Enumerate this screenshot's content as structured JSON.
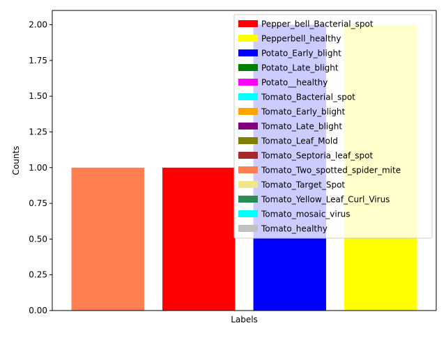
{
  "chart_data": {
    "type": "bar",
    "title": "",
    "xlabel": "Labels",
    "ylabel": "Counts",
    "ylim": [
      0,
      2.1
    ],
    "yticks": [
      "0.00",
      "0.25",
      "0.50",
      "0.75",
      "1.00",
      "1.25",
      "1.50",
      "1.75",
      "2.00"
    ],
    "ytick_values": [
      0,
      0.25,
      0.5,
      0.75,
      1.0,
      1.25,
      1.5,
      1.75,
      2.0
    ],
    "bars": [
      {
        "category": "Tomato_Two_spotted_spider_mite",
        "value": 1,
        "color": "#ff7f50"
      },
      {
        "category": "Pepper_bell_Bacterial_spot",
        "value": 1,
        "color": "#ff0000"
      },
      {
        "category": "Potato_Early_blight",
        "value": 2,
        "color": "#0000ff"
      },
      {
        "category": "Pepperbell_healthy",
        "value": 2,
        "color": "#ffff00"
      }
    ],
    "legend_position": "upper right",
    "legend": [
      {
        "label": "Pepper_bell_Bacterial_spot",
        "color": "#ff0000"
      },
      {
        "label": "Pepperbell_healthy",
        "color": "#ffff00"
      },
      {
        "label": "Potato_Early_blight",
        "color": "#0000ff"
      },
      {
        "label": "Potato_Late_blight",
        "color": "#008000"
      },
      {
        "label": "Potato__healthy",
        "color": "#ff00ff"
      },
      {
        "label": "Tomato_Bacterial_spot",
        "color": "#00ffff"
      },
      {
        "label": "Tomato_Early_blight",
        "color": "#ffa500"
      },
      {
        "label": "Tomato_Late_blight",
        "color": "#800080"
      },
      {
        "label": "Tomato_Leaf_Mold",
        "color": "#808000"
      },
      {
        "label": "Tomato_Septoria_leaf_spot",
        "color": "#a52a2a"
      },
      {
        "label": "Tomato_Two_spotted_spider_mite",
        "color": "#ff7f50"
      },
      {
        "label": "Tomato_Target_Spot",
        "color": "#f0e68c"
      },
      {
        "label": "Tomato_Yellow_Leaf_Curl_Virus",
        "color": "#2e8b57"
      },
      {
        "label": "Tomato_mosaic_virus",
        "color": "#00ffff"
      },
      {
        "label": "Tomato_healthy",
        "color": "#c0c0c0"
      }
    ]
  }
}
